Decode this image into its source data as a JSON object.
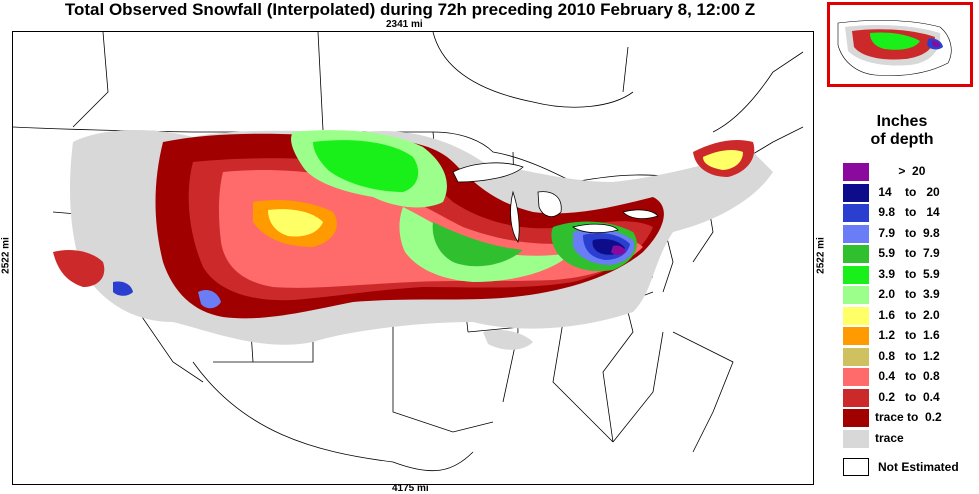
{
  "title": "Total Observed Snowfall (Interpolated) during 72h preceding 2010 February 8, 12:00 Z",
  "scale": {
    "top": "2341 mi",
    "bottom": "4175 mi",
    "left": "2522 mi",
    "right": "2522 mi"
  },
  "legend": {
    "title_line1": "Inches",
    "title_line2": "of depth",
    "items": [
      {
        "label": "       >  20",
        "color": "#8b0a9e"
      },
      {
        "label": " 14    to   20",
        "color": "#0d0d8c"
      },
      {
        "label": " 9.8   to   14",
        "color": "#2a3fd0"
      },
      {
        "label": " 7.9   to  9.8",
        "color": "#6a7cf6"
      },
      {
        "label": " 5.9   to  7.9",
        "color": "#2fbf2f"
      },
      {
        "label": " 3.9   to  5.9",
        "color": "#19f019"
      },
      {
        "label": " 2.0   to  3.9",
        "color": "#9cff8c"
      },
      {
        "label": " 1.6   to  2.0",
        "color": "#ffff66"
      },
      {
        "label": " 1.2   to  1.6",
        "color": "#ff9a00"
      },
      {
        "label": " 0.8   to  1.2",
        "color": "#cfc060"
      },
      {
        "label": " 0.4   to  0.8",
        "color": "#ff6a6a"
      },
      {
        "label": " 0.2   to  0.4",
        "color": "#cc2a2a"
      },
      {
        "label": "trace to  0.2",
        "color": "#a00000"
      },
      {
        "label": "trace",
        "color": "#d8d8d8"
      }
    ],
    "not_estimated": "Not Estimated"
  }
}
